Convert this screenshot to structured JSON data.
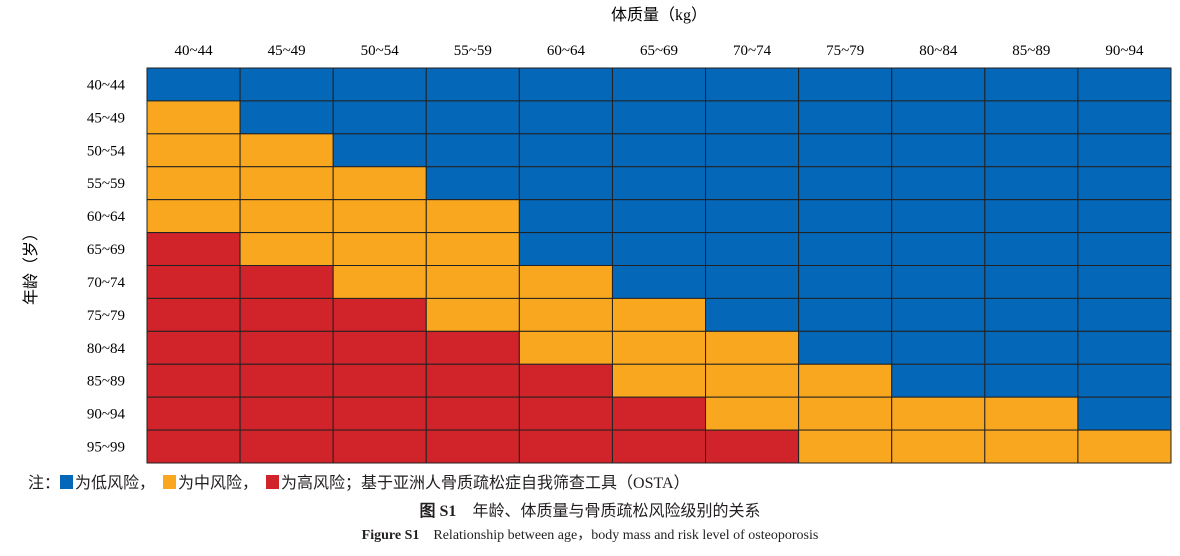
{
  "chart_data": {
    "type": "heatmap",
    "title": "",
    "xlabel": "体质量（kg）",
    "ylabel": "年龄（岁）",
    "x_categories": [
      "40~44",
      "45~49",
      "50~54",
      "55~59",
      "60~64",
      "65~69",
      "70~74",
      "75~79",
      "80~84",
      "85~89",
      "90~94"
    ],
    "y_categories": [
      "40~44",
      "45~49",
      "50~54",
      "55~59",
      "60~64",
      "65~69",
      "70~74",
      "75~79",
      "80~84",
      "85~89",
      "90~94",
      "95~99"
    ],
    "levels": [
      "低风险",
      "中风险",
      "高风险"
    ],
    "level_colors": [
      "#0467b8",
      "#f9a71e",
      "#d0232a"
    ],
    "values": [
      [
        0,
        0,
        0,
        0,
        0,
        0,
        0,
        0,
        0,
        0,
        0
      ],
      [
        1,
        0,
        0,
        0,
        0,
        0,
        0,
        0,
        0,
        0,
        0
      ],
      [
        1,
        1,
        0,
        0,
        0,
        0,
        0,
        0,
        0,
        0,
        0
      ],
      [
        1,
        1,
        1,
        0,
        0,
        0,
        0,
        0,
        0,
        0,
        0
      ],
      [
        1,
        1,
        1,
        1,
        0,
        0,
        0,
        0,
        0,
        0,
        0
      ],
      [
        2,
        1,
        1,
        1,
        0,
        0,
        0,
        0,
        0,
        0,
        0
      ],
      [
        2,
        2,
        1,
        1,
        1,
        0,
        0,
        0,
        0,
        0,
        0
      ],
      [
        2,
        2,
        2,
        1,
        1,
        1,
        0,
        0,
        0,
        0,
        0
      ],
      [
        2,
        2,
        2,
        2,
        1,
        1,
        1,
        0,
        0,
        0,
        0
      ],
      [
        2,
        2,
        2,
        2,
        2,
        1,
        1,
        1,
        0,
        0,
        0
      ],
      [
        2,
        2,
        2,
        2,
        2,
        2,
        1,
        1,
        1,
        1,
        0
      ],
      [
        2,
        2,
        2,
        2,
        2,
        2,
        2,
        1,
        1,
        1,
        1
      ]
    ]
  },
  "note": {
    "prefix": "注：",
    "low": "为低风险，",
    "mid": "为中风险，",
    "high": "为高风险；基于亚洲人骨质疏松症自我筛查工具（OSTA）"
  },
  "caption": {
    "cn_label": "图 S1",
    "cn_text": "年龄、体质量与骨质疏松风险级别的关系",
    "en_label": "Figure S1",
    "en_text": "Relationship between age，body mass and risk level of osteoporosis"
  }
}
